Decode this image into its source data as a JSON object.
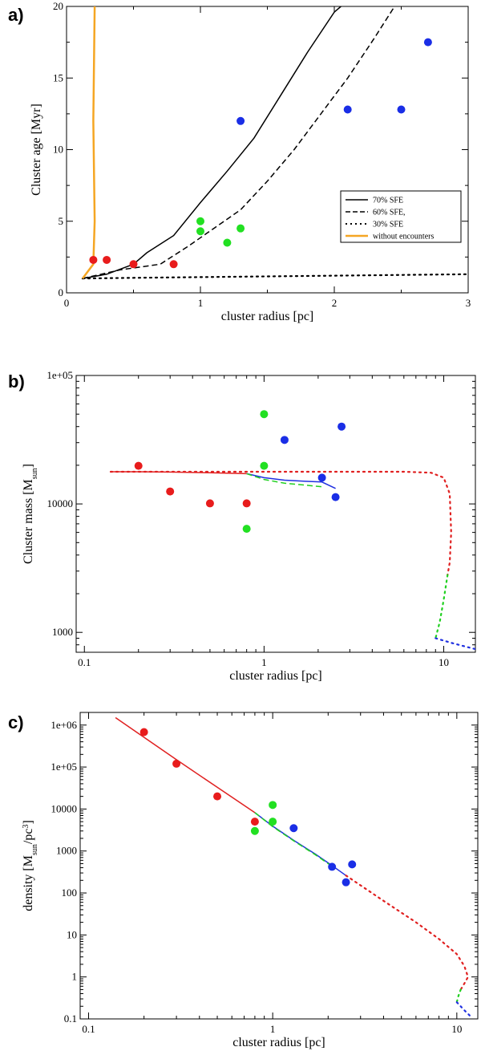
{
  "chart_data": [
    {
      "panel": "a)",
      "type": "line",
      "xlabel": "cluster radius [pc]",
      "ylabel": "Cluster age [Myr]",
      "xscale": "linear",
      "yscale": "linear",
      "xlim": [
        0,
        3
      ],
      "ylim": [
        0,
        20
      ],
      "xticks": [
        0,
        1,
        2,
        3
      ],
      "xticklabels": [
        "0",
        "1",
        "2",
        "3"
      ],
      "yticks": [
        0,
        5,
        10,
        15,
        20
      ],
      "yticklabels": [
        "0",
        "5",
        "10",
        "15",
        "20"
      ],
      "legend_position": "bottom-right",
      "series": [
        {
          "name": "70% SFE",
          "style": "solid",
          "color": "#000000",
          "x": [
            0.12,
            0.3,
            0.5,
            0.6,
            0.8,
            1.0,
            1.2,
            1.4,
            1.6,
            1.8,
            2.0,
            2.05
          ],
          "y": [
            1.0,
            1.3,
            2.0,
            2.8,
            4.0,
            6.3,
            8.5,
            10.8,
            13.8,
            16.8,
            19.6,
            20.0
          ]
        },
        {
          "name": "60% SFE,",
          "style": "dashed",
          "color": "#000000",
          "x": [
            0.12,
            0.4,
            0.7,
            0.9,
            1.1,
            1.3,
            1.5,
            1.7,
            1.9,
            2.1,
            2.3,
            2.45
          ],
          "y": [
            1.0,
            1.6,
            2.0,
            3.2,
            4.5,
            5.8,
            7.8,
            10.0,
            12.5,
            15.0,
            17.8,
            20.0
          ]
        },
        {
          "name": "30% SFE",
          "style": "dotted",
          "color": "#000000",
          "x": [
            0.12,
            0.5,
            1.0,
            1.5,
            2.0,
            2.5,
            3.0
          ],
          "y": [
            1.0,
            1.05,
            1.1,
            1.15,
            1.2,
            1.25,
            1.3
          ]
        },
        {
          "name": "without encounters",
          "style": "solid",
          "color": "#f5a623",
          "x": [
            0.12,
            0.2,
            0.21,
            0.2,
            0.21
          ],
          "y": [
            1.0,
            2.0,
            5.0,
            12.0,
            20.0
          ]
        }
      ],
      "points": [
        {
          "x": 0.2,
          "y": 2.3,
          "color": "red"
        },
        {
          "x": 0.3,
          "y": 2.3,
          "color": "red"
        },
        {
          "x": 0.5,
          "y": 2.0,
          "color": "red"
        },
        {
          "x": 0.8,
          "y": 2.0,
          "color": "red"
        },
        {
          "x": 1.0,
          "y": 5.0,
          "color": "green"
        },
        {
          "x": 1.0,
          "y": 4.3,
          "color": "green"
        },
        {
          "x": 1.2,
          "y": 3.5,
          "color": "green"
        },
        {
          "x": 1.3,
          "y": 4.5,
          "color": "green"
        },
        {
          "x": 1.3,
          "y": 12.0,
          "color": "blue"
        },
        {
          "x": 2.1,
          "y": 12.8,
          "color": "blue"
        },
        {
          "x": 2.5,
          "y": 12.8,
          "color": "blue"
        },
        {
          "x": 2.7,
          "y": 17.5,
          "color": "blue"
        }
      ]
    },
    {
      "panel": "b)",
      "type": "line",
      "xlabel": "cluster radius [pc]",
      "ylabel_main": "Cluster mass [M",
      "ylabel_sub": "sun",
      "ylabel_end": "]",
      "xscale": "log",
      "yscale": "log",
      "xlim": [
        0.09,
        15
      ],
      "ylim": [
        700,
        100000
      ],
      "xticks": [
        0.1,
        1,
        10
      ],
      "xticklabels": [
        "0.1",
        "1",
        "10"
      ],
      "yticks": [
        1000,
        10000,
        100000
      ],
      "yticklabels": [
        "1000",
        "10000",
        "1e+05"
      ],
      "series": [
        {
          "name": "red-solid",
          "style": "solid",
          "color": "#e02020",
          "x": [
            0.14,
            0.2,
            0.3,
            0.5,
            0.8
          ],
          "y": [
            17800,
            17800,
            17700,
            17500,
            17200
          ]
        },
        {
          "name": "blue-solid",
          "style": "solid",
          "color": "#2030e0",
          "x": [
            0.8,
            1.0,
            1.3,
            1.7,
            2.1,
            2.5
          ],
          "y": [
            17200,
            16000,
            15300,
            15000,
            14800,
            13200
          ]
        },
        {
          "name": "green-dashed",
          "style": "dashed",
          "color": "#20d020",
          "x": [
            0.8,
            1.0,
            1.3,
            1.7,
            2.1
          ],
          "y": [
            17200,
            15500,
            14500,
            14000,
            13600
          ]
        },
        {
          "name": "red-dotted",
          "style": "dotted",
          "color": "#e02020",
          "x": [
            0.14,
            1,
            3,
            6,
            8.5,
            10,
            10.8,
            11,
            10.8,
            10.5
          ],
          "y": [
            17800,
            17800,
            17800,
            17800,
            17500,
            16000,
            12000,
            6000,
            3500,
            2800
          ]
        },
        {
          "name": "green-dotted",
          "style": "dotted",
          "color": "#20d020",
          "x": [
            10.5,
            10.0,
            9.5,
            9.0
          ],
          "y": [
            2800,
            1800,
            1200,
            900
          ]
        },
        {
          "name": "blue-dotted",
          "style": "dotted",
          "color": "#2030e0",
          "x": [
            9.0,
            11,
            13,
            15
          ],
          "y": [
            900,
            830,
            780,
            740
          ]
        }
      ],
      "points": [
        {
          "x": 0.2,
          "y": 19800,
          "color": "red"
        },
        {
          "x": 0.3,
          "y": 12500,
          "color": "red"
        },
        {
          "x": 0.5,
          "y": 10100,
          "color": "red"
        },
        {
          "x": 0.8,
          "y": 10100,
          "color": "red"
        },
        {
          "x": 0.8,
          "y": 6400,
          "color": "green"
        },
        {
          "x": 1.0,
          "y": 19800,
          "color": "green"
        },
        {
          "x": 1.0,
          "y": 50000,
          "color": "green"
        },
        {
          "x": 1.3,
          "y": 31500,
          "color": "blue"
        },
        {
          "x": 2.1,
          "y": 16000,
          "color": "blue"
        },
        {
          "x": 2.5,
          "y": 11300,
          "color": "blue"
        },
        {
          "x": 2.7,
          "y": 40000,
          "color": "blue"
        }
      ]
    },
    {
      "panel": "c)",
      "type": "line",
      "xlabel": "cluster radius [pc]",
      "ylabel_main": "density [M",
      "ylabel_sub": "sun",
      "ylabel_mid": "/pc",
      "ylabel_sup": "3",
      "ylabel_end": "]",
      "xscale": "log",
      "yscale": "log",
      "xlim": [
        0.09,
        13
      ],
      "ylim": [
        0.1,
        2000000
      ],
      "xticks": [
        0.1,
        1,
        10
      ],
      "xticklabels": [
        "0.1",
        "1",
        "10"
      ],
      "yticks": [
        0.1,
        1,
        10,
        100,
        1000,
        10000,
        100000,
        1000000
      ],
      "yticklabels": [
        "0.1",
        "1",
        "10",
        "100",
        "1000",
        "10000",
        "1e+05",
        "1e+06"
      ],
      "series": [
        {
          "name": "red-solid",
          "style": "solid",
          "color": "#e02020",
          "x": [
            0.14,
            0.3,
            0.5,
            0.8
          ],
          "y": [
            1500000,
            150000,
            33000,
            8200
          ]
        },
        {
          "name": "blue-solid",
          "style": "solid",
          "color": "#2030e0",
          "x": [
            0.8,
            1.0,
            1.3,
            1.7,
            2.1,
            2.5
          ],
          "y": [
            8200,
            3900,
            1800,
            850,
            450,
            260
          ]
        },
        {
          "name": "green-dashed",
          "style": "dashed",
          "color": "#20d020",
          "x": [
            0.8,
            1.0,
            1.3,
            1.7,
            2.1
          ],
          "y": [
            8200,
            3800,
            1750,
            820,
            430
          ]
        },
        {
          "name": "red-dotted",
          "style": "dotted",
          "color": "#e02020",
          "x": [
            2.5,
            4,
            6,
            8,
            10,
            11,
            11.5,
            11,
            10.5
          ],
          "y": [
            260,
            65,
            20,
            8,
            3.5,
            1.8,
            1.0,
            0.7,
            0.5
          ]
        },
        {
          "name": "green-dotted",
          "style": "dotted",
          "color": "#20d020",
          "x": [
            10.5,
            10.2,
            10.0
          ],
          "y": [
            0.5,
            0.35,
            0.25
          ]
        },
        {
          "name": "blue-dotted",
          "style": "dotted",
          "color": "#2030e0",
          "x": [
            10.0,
            11,
            12
          ],
          "y": [
            0.25,
            0.16,
            0.11
          ]
        }
      ],
      "points": [
        {
          "x": 0.2,
          "y": 680000,
          "color": "red"
        },
        {
          "x": 0.3,
          "y": 120000,
          "color": "red"
        },
        {
          "x": 0.5,
          "y": 20000,
          "color": "red"
        },
        {
          "x": 0.8,
          "y": 5000,
          "color": "red"
        },
        {
          "x": 0.8,
          "y": 3000,
          "color": "green"
        },
        {
          "x": 1.0,
          "y": 12500,
          "color": "green"
        },
        {
          "x": 1.0,
          "y": 5000,
          "color": "green"
        },
        {
          "x": 1.3,
          "y": 3500,
          "color": "blue"
        },
        {
          "x": 2.1,
          "y": 420,
          "color": "blue"
        },
        {
          "x": 2.5,
          "y": 180,
          "color": "blue"
        },
        {
          "x": 2.7,
          "y": 480,
          "color": "blue"
        }
      ]
    }
  ],
  "colors": {
    "red": "#e81c1c",
    "green": "#22e022",
    "blue": "#1a2ee6"
  }
}
